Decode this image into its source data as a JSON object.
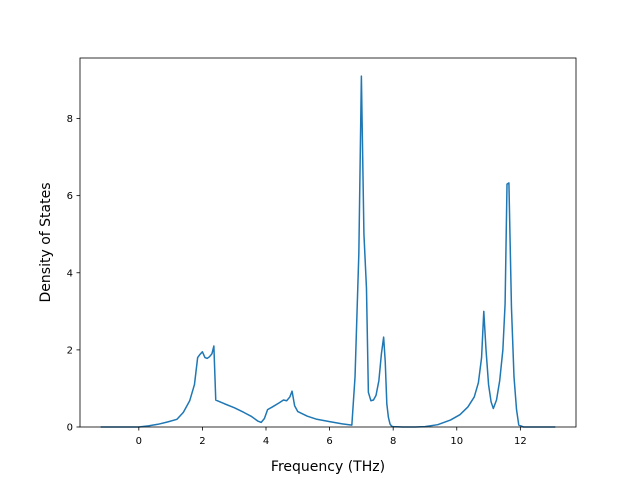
{
  "chart_data": {
    "type": "line",
    "title": "",
    "xlabel": "Frequency (THz)",
    "ylabel": "Density of States",
    "xlim": [
      -1.85,
      13.75
    ],
    "ylim": [
      0,
      9.57
    ],
    "xticks": [
      0,
      2,
      4,
      6,
      8,
      10,
      12
    ],
    "xtick_labels": [
      "0",
      "2",
      "4",
      "6",
      "8",
      "10",
      "12"
    ],
    "yticks": [
      0,
      2,
      4,
      6,
      8
    ],
    "ytick_labels": [
      "0",
      "2",
      "4",
      "6",
      "8"
    ],
    "grid": false,
    "series": [
      {
        "name": "",
        "color": "#1f77b4",
        "x": [
          -1.2,
          -0.5,
          0.0,
          0.3,
          0.6,
          0.9,
          1.2,
          1.4,
          1.6,
          1.75,
          1.85,
          1.92,
          2.0,
          2.08,
          2.15,
          2.22,
          2.3,
          2.36,
          2.42,
          2.7,
          3.0,
          3.3,
          3.55,
          3.75,
          3.85,
          3.95,
          4.05,
          4.2,
          4.4,
          4.55,
          4.65,
          4.75,
          4.82,
          4.9,
          5.0,
          5.3,
          5.6,
          6.0,
          6.4,
          6.7,
          6.8,
          6.92,
          7.0,
          7.08,
          7.16,
          7.22,
          7.3,
          7.38,
          7.46,
          7.55,
          7.63,
          7.7,
          7.75,
          7.8,
          7.85,
          7.9,
          7.95,
          8.0,
          8.3,
          8.7,
          9.0,
          9.4,
          9.8,
          10.1,
          10.35,
          10.55,
          10.68,
          10.78,
          10.85,
          10.92,
          11.0,
          11.08,
          11.15,
          11.25,
          11.35,
          11.45,
          11.52,
          11.58,
          11.64,
          11.72,
          11.8,
          11.88,
          11.95,
          12.1,
          12.5,
          13.1
        ],
        "values": [
          0.0,
          0.0,
          0.0,
          0.03,
          0.07,
          0.13,
          0.2,
          0.38,
          0.68,
          1.1,
          1.8,
          1.88,
          1.95,
          1.8,
          1.78,
          1.82,
          1.9,
          2.1,
          0.7,
          0.6,
          0.5,
          0.38,
          0.27,
          0.15,
          0.12,
          0.22,
          0.45,
          0.52,
          0.62,
          0.7,
          0.68,
          0.78,
          0.93,
          0.55,
          0.4,
          0.28,
          0.2,
          0.14,
          0.08,
          0.05,
          1.3,
          4.5,
          9.1,
          5.0,
          3.6,
          0.9,
          0.68,
          0.7,
          0.82,
          1.2,
          1.9,
          2.33,
          1.7,
          0.6,
          0.25,
          0.08,
          0.02,
          0.01,
          0.0,
          0.0,
          0.01,
          0.06,
          0.18,
          0.32,
          0.52,
          0.78,
          1.15,
          1.8,
          3.0,
          2.0,
          1.1,
          0.65,
          0.48,
          0.7,
          1.2,
          2.0,
          3.2,
          6.3,
          6.33,
          3.1,
          1.3,
          0.45,
          0.05,
          0.0,
          0.0,
          0.0
        ]
      }
    ]
  }
}
